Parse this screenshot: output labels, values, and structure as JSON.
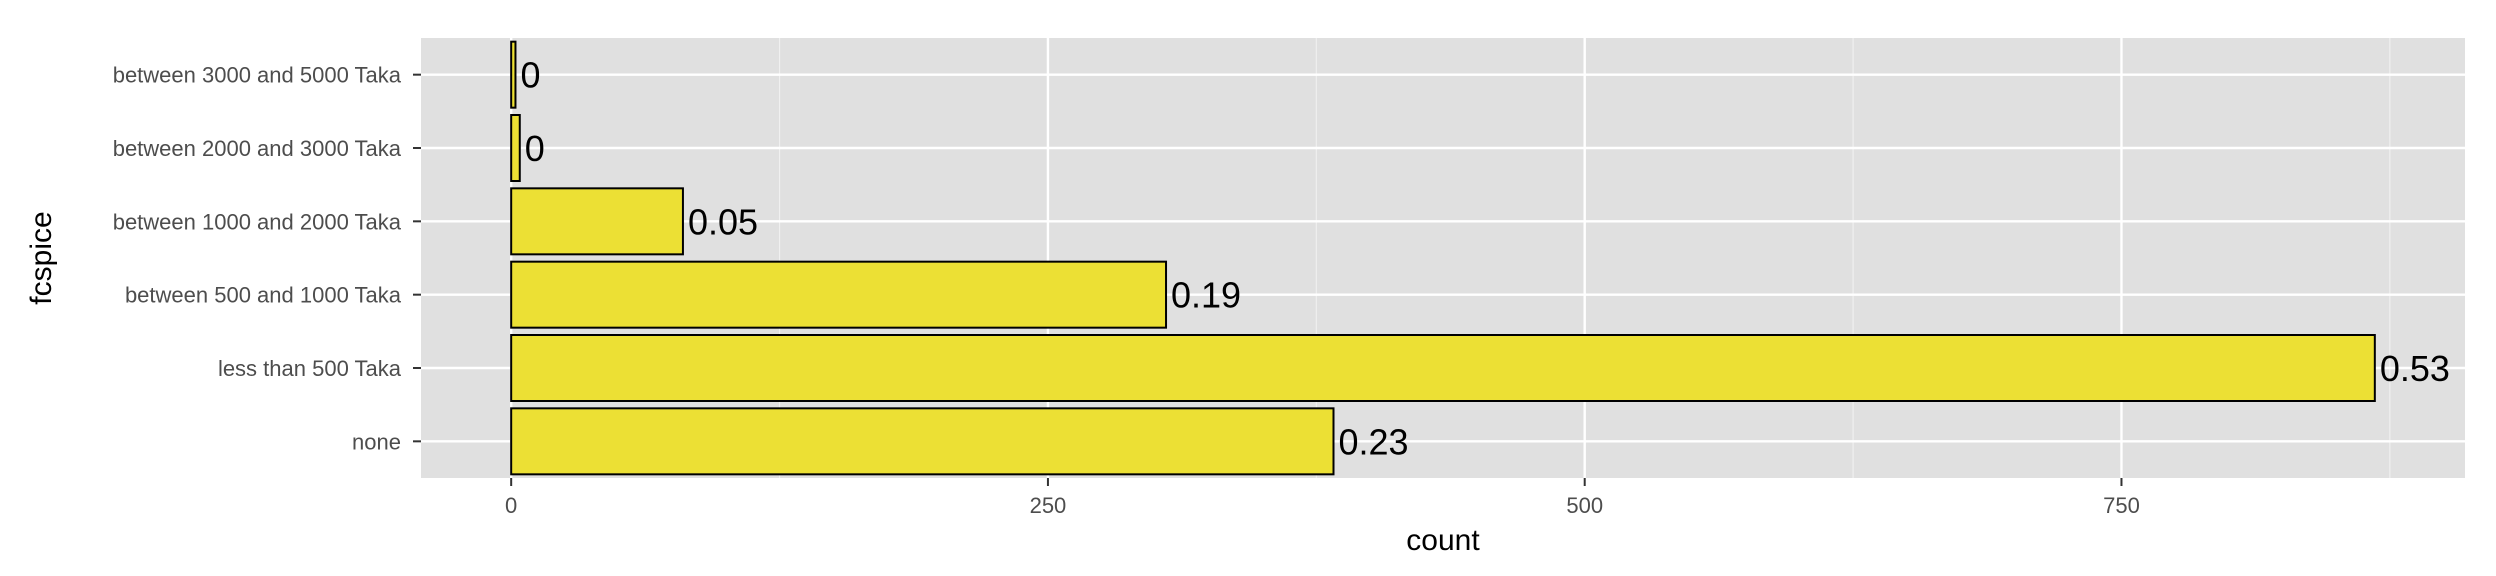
{
  "chart_data": {
    "type": "bar",
    "orientation": "horizontal",
    "xlabel": "count",
    "ylabel": "fcspice",
    "categories": [
      "none",
      "less than 500 Taka",
      "between 500 and 1000 Taka",
      "between 1000 and 2000 Taka",
      "between 2000 and 3000 Taka",
      "between 3000 and 5000 Taka"
    ],
    "values": [
      383,
      868,
      305,
      80,
      4,
      2
    ],
    "bar_labels": [
      "0.23",
      "0.53",
      "0.19",
      "0.05",
      "0",
      "0"
    ],
    "xlim": [
      -42,
      910
    ],
    "x_ticks": [
      0,
      250,
      500,
      750
    ],
    "x_tick_labels": [
      "0",
      "250",
      "500",
      "750"
    ],
    "grid": true,
    "legend": "none",
    "colors": {
      "bar_fill": "#ECE034",
      "bar_stroke": "#000000",
      "panel_bg": "#E0E0E0",
      "grid_major": "#FFFFFF",
      "grid_minor": "#F0F0F0"
    }
  }
}
